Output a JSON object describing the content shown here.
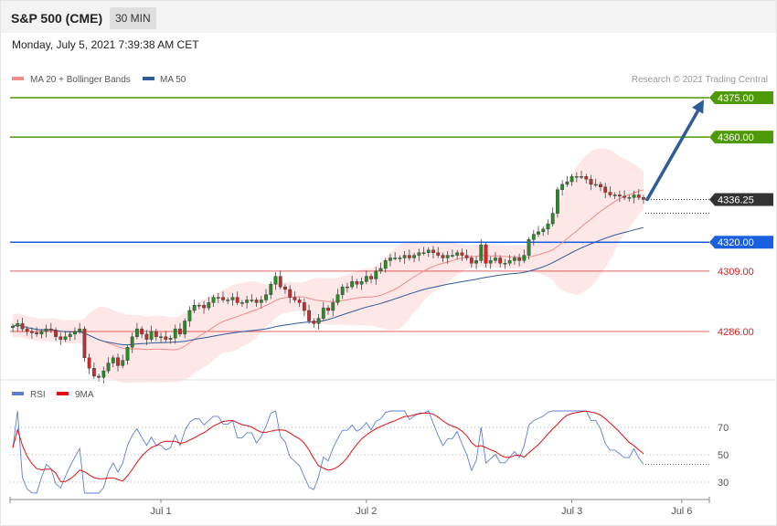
{
  "header": {
    "title": "S&P 500 (CME)",
    "interval": "30 MIN"
  },
  "date_text": "Monday, July 5, 2021 7:39:38 AM CET",
  "legend": {
    "ma20": {
      "label": "MA 20 + Bollinger Bands",
      "color": "#f28b8b"
    },
    "ma50": {
      "label": "MA 50",
      "color": "#2e5b9a"
    }
  },
  "copyright": "Research © 2021 Trading Central",
  "rsi_legend": {
    "rsi": {
      "label": "RSI",
      "color": "#5b7fd6"
    },
    "ma9": {
      "label": "9MA",
      "color": "#e01010"
    }
  },
  "chart_data": [
    {
      "type": "candlestick",
      "price_range": [
        4260,
        4385
      ],
      "last_price": 4336.25,
      "levels": [
        {
          "value": 4375.0,
          "label": "4375.00",
          "color": "#4e9a06",
          "style": "tag"
        },
        {
          "value": 4360.0,
          "label": "4360.00",
          "color": "#4e9a06",
          "style": "tag"
        },
        {
          "value": 4336.25,
          "label": "4336.25",
          "color": "#333333",
          "style": "last"
        },
        {
          "value": 4320.0,
          "label": "4320.00",
          "color": "#1a5fe0",
          "style": "tag"
        },
        {
          "value": 4309.0,
          "label": "4309.00",
          "color": "#d42020",
          "style": "text"
        },
        {
          "value": 4286.0,
          "label": "4286.00",
          "color": "#d42020",
          "style": "text"
        }
      ],
      "projection": {
        "from": 4336.25,
        "to": 4375.0
      },
      "closes": [
        4288,
        4289,
        4287,
        4286,
        4285.5,
        4285,
        4286,
        4287,
        4286.5,
        4284,
        4283,
        4284,
        4285,
        4286,
        4287,
        4276,
        4272,
        4269,
        4268.5,
        4271,
        4274,
        4276,
        4273,
        4275,
        4280,
        4284,
        4287,
        4285,
        4283,
        4286,
        4284,
        4284,
        4283,
        4283.5,
        4287,
        4285,
        4290,
        4294,
        4296,
        4296,
        4295,
        4297,
        4299,
        4299,
        4298,
        4298,
        4299,
        4297,
        4297,
        4298,
        4298,
        4297,
        4298,
        4300,
        4304,
        4307,
        4303,
        4302,
        4299,
        4298,
        4297,
        4294,
        4290,
        4289,
        4291,
        4295,
        4294,
        4297,
        4300,
        4303,
        4303,
        4305,
        4304,
        4305,
        4307,
        4306,
        4309,
        4310,
        4313,
        4314,
        4314,
        4314,
        4315,
        4314,
        4315,
        4316,
        4316,
        4317,
        4316,
        4315,
        4314,
        4315,
        4315,
        4316,
        4315,
        4314,
        4312,
        4313,
        4319,
        4312,
        4313,
        4314,
        4312,
        4312,
        4313,
        4314,
        4313,
        4315,
        4321,
        4323,
        4324,
        4325,
        4327,
        4331,
        4340,
        4342,
        4343,
        4345,
        4345,
        4345,
        4344,
        4342,
        4342,
        4341,
        4339,
        4338,
        4338,
        4337.5,
        4337,
        4337,
        4338,
        4337,
        4336.25
      ],
      "rsi": {
        "ticks": [
          70,
          50,
          30
        ],
        "range": [
          18,
          82
        ]
      },
      "x_labels": [
        {
          "label": "Jul 1",
          "index": 31
        },
        {
          "label": "Jul 2",
          "index": 74
        },
        {
          "label": "Jul 3",
          "index": 117
        },
        {
          "label": "Jul 6",
          "index": 140
        }
      ]
    }
  ]
}
